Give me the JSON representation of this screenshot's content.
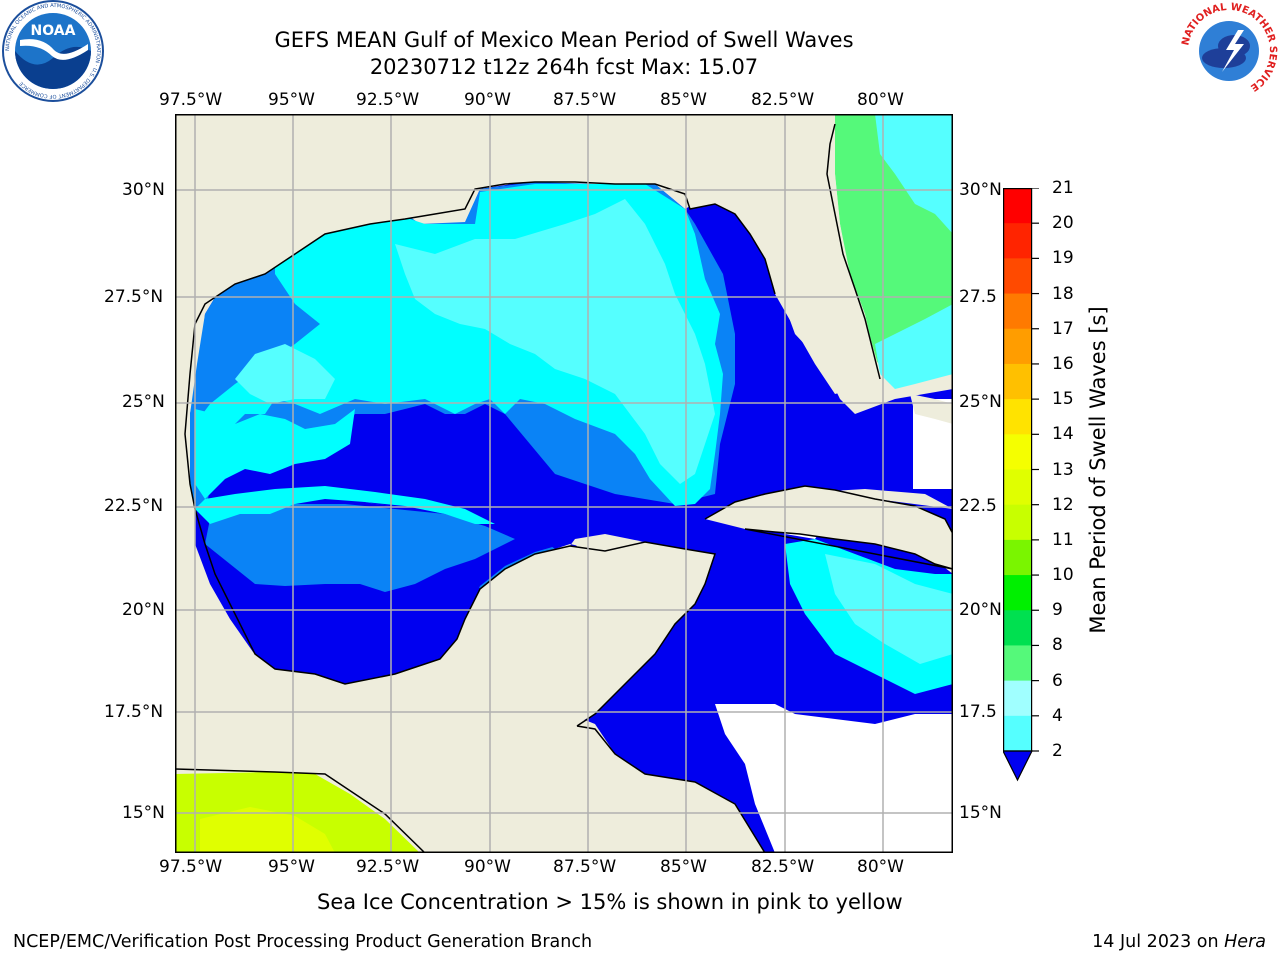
{
  "title": {
    "line1": "GEFS MEAN Gulf of Mexico Mean Period of Swell Waves",
    "line2": "20230712 t12z 264h fcst   Max: 15.07"
  },
  "logos": {
    "noaa_text": "NOAA",
    "noaa_ring_text": "NATIONAL OCEANIC AND ATMOSPHERIC ADMINISTRATION · U.S. DEPARTMENT OF COMMERCE",
    "nws_ring_text": "NATIONAL WEATHER SERVICE"
  },
  "map": {
    "lon_labels": [
      "97.5°W",
      "95°W",
      "92.5°W",
      "90°W",
      "87.5°W",
      "85°W",
      "82.5°W",
      "80°W"
    ],
    "lat_labels_left": [
      "30°N",
      "27.5°N",
      "25°N",
      "22.5°N",
      "20°N",
      "17.5°N",
      "15°N"
    ],
    "lat_labels_right": [
      "30°N",
      "27.5",
      "25°N",
      "22.5",
      "20°N",
      "17.5",
      "15°N"
    ],
    "colors": {
      "land": "#eeeddc",
      "grid": "#b0b0b0",
      "coast": "#000000",
      "c_2_4": "#0000f0",
      "c_4_6": "#0a83f6",
      "c_6_8": "#00ffff",
      "c_8_9": "#55ffff",
      "c_9_10": "#55f97a",
      "c_12_13": "#c8ff00",
      "c_13_14": "#e0ff00"
    }
  },
  "colorbar": {
    "label": "Mean Period of Swell Waves [s]",
    "ticks": [
      "21",
      "20",
      "19",
      "18",
      "17",
      "16",
      "15",
      "14",
      "13",
      "12",
      "11",
      "10",
      "9",
      "8",
      "6",
      "4",
      "2"
    ],
    "colors": [
      "#ff0000",
      "#ff2400",
      "#ff4a00",
      "#ff7a00",
      "#ff9d00",
      "#ffc000",
      "#ffe300",
      "#f5ff00",
      "#e0ff00",
      "#c8ff00",
      "#7af500",
      "#00f000",
      "#00e050",
      "#55f97a",
      "#a0ffff",
      "#55ffff",
      "#00ffff",
      "#0a83f6"
    ],
    "extend_color": "#0000f0"
  },
  "caption": "Sea Ice Concentration > 15% is shown in pink to yellow",
  "footer": {
    "left": "NCEP/EMC/Verification Post Processing Product Generation Branch",
    "right_date": "14 Jul 2023 on ",
    "right_host": "Hera"
  }
}
